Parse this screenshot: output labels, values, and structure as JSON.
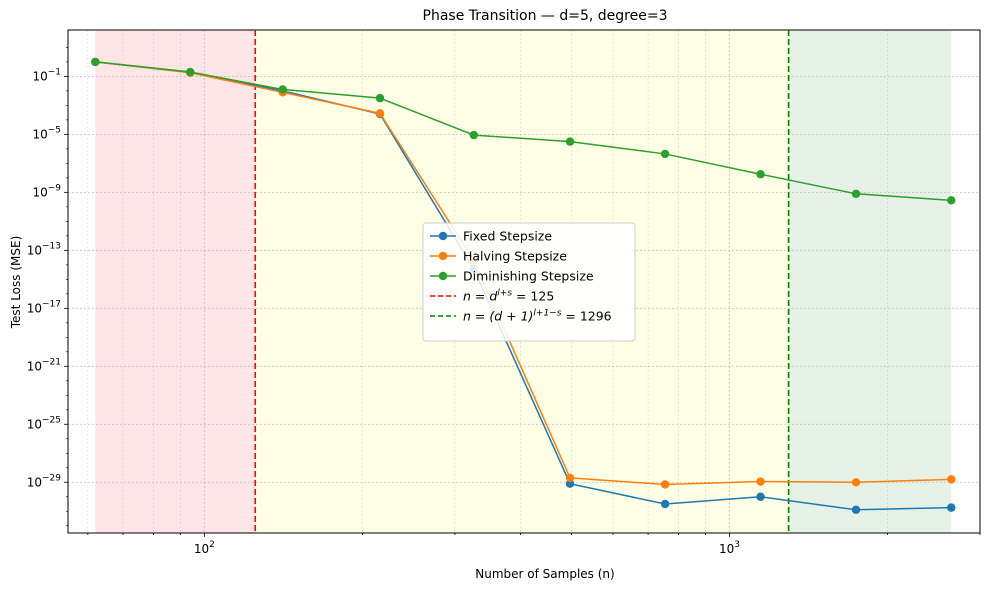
{
  "chart_data": {
    "type": "line",
    "title": "Phase Transition — d=5, degree=3",
    "xlabel": "Number of Samples (n)",
    "ylabel": "Test Loss (MSE)",
    "xscale": "log",
    "yscale": "log",
    "xlim": [
      55,
      3000
    ],
    "ylim_log10": [
      -32.5,
      2.2
    ],
    "grid": true,
    "legend_position": "center",
    "x_ticks": [
      {
        "log10": 2,
        "base": "10",
        "exp": "2"
      },
      {
        "log10": 3,
        "base": "10",
        "exp": "3"
      }
    ],
    "y_ticks": [
      {
        "log10": -1,
        "base": "10",
        "exp": "−1"
      },
      {
        "log10": -5,
        "base": "10",
        "exp": "−5"
      },
      {
        "log10": -9,
        "base": "10",
        "exp": "−9"
      },
      {
        "log10": -13,
        "base": "10",
        "exp": "−13"
      },
      {
        "log10": -17,
        "base": "10",
        "exp": "−17"
      },
      {
        "log10": -21,
        "base": "10",
        "exp": "−21"
      },
      {
        "log10": -25,
        "base": "10",
        "exp": "−25"
      },
      {
        "log10": -29,
        "base": "10",
        "exp": "−29"
      }
    ],
    "x": [
      62,
      94,
      141,
      216,
      326,
      497,
      754,
      1146,
      1742,
      2645
    ],
    "series": [
      {
        "name": "Fixed Stepsize",
        "color": "#1f77b4",
        "y_log10": [
          0.0,
          -0.7,
          -2.0,
          -3.6,
          -14.3,
          -29.1,
          -30.5,
          -30.0,
          -30.9,
          -30.75
        ]
      },
      {
        "name": "Halving Stepsize",
        "color": "#ff7f0e",
        "y_log10": [
          0.0,
          -0.75,
          -2.1,
          -3.55,
          -13.7,
          -28.7,
          -29.15,
          -28.95,
          -29.0,
          -28.8
        ]
      },
      {
        "name": "Diminishing Stepsize",
        "color": "#2ca02c",
        "y_log10": [
          0.0,
          -0.7,
          -1.9,
          -2.5,
          -5.05,
          -5.5,
          -6.35,
          -7.75,
          -9.1,
          -9.55
        ]
      }
    ],
    "vlines": [
      {
        "x": 125,
        "color": "#ff0000",
        "label_pre": "n = d",
        "label_sup": "l+s",
        "label_post": " = 125"
      },
      {
        "x": 1296,
        "color": "#008000",
        "label_pre": "n = (d + 1)",
        "label_sup": "l+1−s",
        "label_post": " = 1296"
      }
    ],
    "regions": [
      {
        "x0": 62,
        "x1": 125,
        "color": "#ff0000",
        "alpha": 0.1
      },
      {
        "x0": 125,
        "x1": 1296,
        "color": "#ffff00",
        "alpha": 0.1
      },
      {
        "x0": 1296,
        "x1": 2645,
        "color": "#008000",
        "alpha": 0.1
      }
    ]
  }
}
